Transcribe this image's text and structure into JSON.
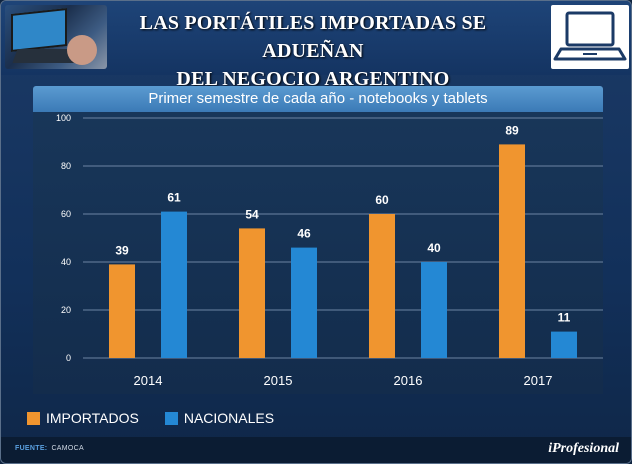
{
  "header": {
    "title_line1": "LAS PORTÁTILES IMPORTADAS SE ADUEÑAN",
    "title_line2": "DEL NEGOCIO ARGENTINO"
  },
  "chart_data": {
    "type": "bar",
    "title": "Primer semestre de cada año - notebooks y tablets",
    "categories": [
      "2014",
      "2015",
      "2016",
      "2017"
    ],
    "series": [
      {
        "name": "IMPORTADOS",
        "values": [
          39,
          54,
          60,
          89
        ],
        "color": "#f0952f"
      },
      {
        "name": "NACIONALES",
        "values": [
          61,
          46,
          40,
          11
        ],
        "color": "#2488d4"
      }
    ],
    "ylim": [
      0,
      100
    ],
    "yticks": [
      "0",
      "20",
      "40",
      "60",
      "80",
      "100"
    ],
    "xlabel": "",
    "ylabel": "",
    "grid": true
  },
  "legend": {
    "item1": "IMPORTADOS",
    "item2": "NACIONALES"
  },
  "footer": {
    "source_label": "FUENTE:",
    "source_value": "CAMOCA",
    "brand": "iProfesional"
  },
  "colors": {
    "importados": "#f0952f",
    "nacionales": "#2488d4"
  }
}
